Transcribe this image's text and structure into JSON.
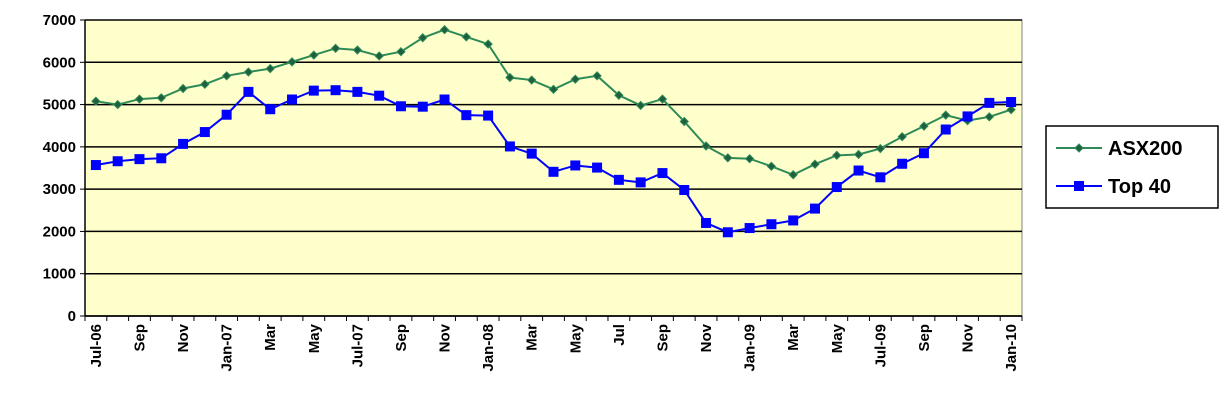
{
  "chart_data": {
    "type": "line",
    "categories": [
      "Jul-06",
      null,
      "Sep",
      null,
      "Nov",
      null,
      "Jan-07",
      null,
      "Mar",
      null,
      "May",
      null,
      "Jul-07",
      null,
      "Sep",
      null,
      "Nov",
      null,
      "Jan-08",
      null,
      "Mar",
      null,
      "May",
      null,
      "Jul",
      null,
      "Sep",
      null,
      "Nov",
      null,
      "Jan-09",
      null,
      "Mar",
      null,
      "May",
      null,
      "Jul-09",
      null,
      "Sep",
      null,
      "Nov",
      null,
      "Jan-10"
    ],
    "series": [
      {
        "name": "ASX200",
        "color": "#2e8b57",
        "marker": "diamond",
        "values": [
          5080,
          5000,
          5130,
          5160,
          5380,
          5480,
          5680,
          5770,
          5850,
          6010,
          6170,
          6330,
          6290,
          6150,
          6250,
          6580,
          6770,
          6600,
          6430,
          5640,
          5580,
          5360,
          5600,
          5680,
          5220,
          4980,
          5130,
          4600,
          4020,
          3740,
          3720,
          3540,
          3340,
          3590,
          3800,
          3820,
          3960,
          4240,
          4490,
          4750,
          4620,
          4710,
          4880
        ]
      },
      {
        "name": "Top 40",
        "color": "#0000ff",
        "marker": "square",
        "values": [
          3570,
          3660,
          3710,
          3730,
          4070,
          4350,
          4760,
          5300,
          4890,
          5120,
          5330,
          5340,
          5300,
          5210,
          4960,
          4950,
          5120,
          4750,
          4740,
          4010,
          3840,
          3410,
          3560,
          3510,
          3220,
          3160,
          3380,
          2980,
          2200,
          1980,
          2080,
          2170,
          2260,
          2540,
          3050,
          3440,
          3280,
          3600,
          3850,
          4410,
          4720,
          5040,
          5060
        ]
      }
    ],
    "ylim": [
      0,
      7000
    ],
    "yticks": [
      0,
      1000,
      2000,
      3000,
      4000,
      5000,
      6000,
      7000
    ],
    "grid": true,
    "legend": "right",
    "plot_background": "#ffffcc"
  }
}
